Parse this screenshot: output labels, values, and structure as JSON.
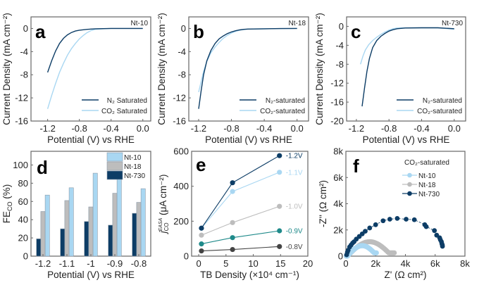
{
  "colors": {
    "dark_blue": "#0d3d66",
    "light_blue": "#a9d7f2",
    "gray": "#bdbdbd",
    "teal": "#1f8a8a",
    "dark_gray": "#444444",
    "frame": "#666666"
  },
  "chart_data": [
    {
      "id": "a",
      "type": "line",
      "panel_label": "a",
      "annotation": "Nt-10",
      "xlabel": "Potential (V) vs RHE",
      "ylabel": "Current Density (mA cm⁻²)",
      "xlim": [
        -1.41,
        0.1
      ],
      "ylim": [
        -16,
        2
      ],
      "xticks": [
        -1.2,
        -0.8,
        -0.4,
        0.0
      ],
      "xtick_labels": [
        "-1.2",
        "-0.8",
        "-0.4",
        "0.0"
      ],
      "yticks": [
        0,
        -4,
        -8,
        -12,
        -16
      ],
      "ytick_labels": [
        "0",
        "-4",
        "-8",
        "-12",
        "-16"
      ],
      "legend_position": "bottom-right",
      "series": [
        {
          "name": "N₂ Saturated",
          "color_key": "dark_blue",
          "x": [
            -1.2,
            -1.15,
            -1.1,
            -1.05,
            -1.0,
            -0.95,
            -0.9,
            -0.85,
            -0.8,
            -0.7,
            -0.6,
            -0.4,
            -0.2,
            0.0
          ],
          "y": [
            -7.6,
            -5.6,
            -3.9,
            -2.6,
            -1.7,
            -1.1,
            -0.7,
            -0.45,
            -0.3,
            -0.15,
            -0.05,
            0,
            0,
            0
          ]
        },
        {
          "name": "CO₂ Saturated",
          "color_key": "light_blue",
          "x": [
            -1.2,
            -1.15,
            -1.1,
            -1.05,
            -1.0,
            -0.95,
            -0.9,
            -0.85,
            -0.8,
            -0.75,
            -0.7,
            -0.65,
            -0.6,
            -0.5,
            -0.4,
            -0.2,
            0.0
          ],
          "y": [
            -13.9,
            -11.6,
            -9.5,
            -7.6,
            -6.0,
            -4.6,
            -3.5,
            -2.6,
            -1.8,
            -1.2,
            -0.7,
            -0.35,
            -0.15,
            -0.05,
            0,
            0,
            0
          ]
        }
      ]
    },
    {
      "id": "b",
      "type": "line",
      "panel_label": "b",
      "annotation": "Nt-18",
      "xlabel": "Potential (V) vs RHE",
      "ylabel": "Current Density (mA cm⁻²)",
      "xlim": [
        -1.32,
        0.14
      ],
      "ylim": [
        -16,
        2
      ],
      "xticks": [
        -1.2,
        -0.8,
        -0.4,
        0.0
      ],
      "xtick_labels": [
        "-1.2",
        "-0.8",
        "-0.4",
        "0.0"
      ],
      "yticks": [
        0,
        -4,
        -8,
        -12,
        -16
      ],
      "ytick_labels": [
        "0",
        "-4",
        "-8",
        "-12",
        "-16"
      ],
      "legend_position": "bottom-right",
      "series": [
        {
          "name": "N₂-saturated",
          "color_key": "dark_blue",
          "x": [
            -1.2,
            -1.17,
            -1.14,
            -1.1,
            -1.05,
            -1.0,
            -0.95,
            -0.9,
            -0.85,
            -0.8,
            -0.75,
            -0.7,
            -0.65,
            -0.6,
            -0.4,
            -0.2,
            0.0
          ],
          "y": [
            -13.9,
            -10.8,
            -8.0,
            -5.6,
            -3.8,
            -2.6,
            -1.8,
            -1.3,
            -0.9,
            -0.6,
            -0.4,
            -0.25,
            -0.15,
            -0.1,
            -0.05,
            -0.02,
            0
          ]
        },
        {
          "name": "CO₂-saturated",
          "color_key": "light_blue",
          "x": [
            -1.2,
            -1.17,
            -1.14,
            -1.1,
            -1.05,
            -1.0,
            -0.95,
            -0.9,
            -0.85,
            -0.8,
            -0.75,
            -0.7,
            -0.65,
            -0.6,
            -0.4,
            -0.2,
            0.0
          ],
          "y": [
            -11.0,
            -9.2,
            -7.4,
            -5.7,
            -4.2,
            -3.2,
            -2.4,
            -1.7,
            -1.2,
            -0.8,
            -0.5,
            -0.3,
            -0.2,
            -0.1,
            -0.05,
            -0.02,
            0
          ]
        }
      ]
    },
    {
      "id": "c",
      "type": "line",
      "panel_label": "c",
      "annotation": "Nt-730",
      "xlabel": "Potential (V) vs RHE",
      "ylabel": "Current Density (mA cm⁻²)",
      "xlim": [
        -1.32,
        0.14
      ],
      "ylim": [
        -20,
        2
      ],
      "xticks": [
        -1.2,
        -0.8,
        -0.4,
        0.0
      ],
      "xtick_labels": [
        "-1.2",
        "-0.8",
        "-0.4",
        "0.0"
      ],
      "yticks": [
        0,
        -4,
        -8,
        -12,
        -16,
        -20
      ],
      "ytick_labels": [
        "0",
        "-4",
        "-8",
        "-12",
        "-16",
        "-20"
      ],
      "legend_position": "bottom-right",
      "series": [
        {
          "name": "N₂-saturated",
          "color_key": "dark_blue",
          "x": [
            -1.13,
            -1.1,
            -1.07,
            -1.04,
            -1.0,
            -0.95,
            -0.9,
            -0.85,
            -0.8,
            -0.75,
            -0.7,
            -0.6,
            -0.4,
            -0.2,
            0.0
          ],
          "y": [
            -16.9,
            -13.0,
            -9.5,
            -6.8,
            -4.5,
            -3.0,
            -2.1,
            -1.5,
            -1.0,
            -0.7,
            -0.5,
            -0.35,
            -0.3,
            -0.3,
            -0.5
          ]
        },
        {
          "name": "CO₂-saturated",
          "color_key": "light_blue",
          "x": [
            -1.15,
            -1.12,
            -1.09,
            -1.05,
            -1.0,
            -0.95,
            -0.9,
            -0.85,
            -0.8,
            -0.75,
            -0.7,
            -0.6,
            -0.4,
            -0.2,
            0.0
          ],
          "y": [
            -8.0,
            -6.3,
            -5.0,
            -3.9,
            -3.0,
            -2.3,
            -1.7,
            -1.2,
            -0.8,
            -0.5,
            -0.35,
            -0.3,
            -0.3,
            -0.3,
            -0.6
          ]
        }
      ]
    },
    {
      "id": "d",
      "type": "bar",
      "panel_label": "d",
      "xlabel": "Potential (V) vs RHE",
      "ylabel": "FE_CO (%)",
      "ylabel_main": "FE",
      "ylabel_sub": "CO",
      "ylabel_tail": " (%)",
      "ylim": [
        0,
        115
      ],
      "yticks": [
        0,
        20,
        40,
        60,
        80,
        100
      ],
      "ytick_labels": [
        "0",
        "20",
        "40",
        "60",
        "80",
        "100"
      ],
      "categories": [
        "-1.2",
        "-1.1",
        "-1",
        "-0.9",
        "-0.8"
      ],
      "legend_position": "top-right",
      "series": [
        {
          "name": "Nt-730",
          "color_key": "dark_blue",
          "values": [
            19,
            30,
            38,
            34,
            47
          ]
        },
        {
          "name": "Nt-18",
          "color_key": "gray",
          "values": [
            49,
            61,
            54,
            69,
            59
          ]
        },
        {
          "name": "Nt-10",
          "color_key": "light_blue",
          "values": [
            67,
            75,
            91,
            87,
            74
          ]
        }
      ],
      "legend_order": [
        "Nt-10",
        "Nt-18",
        "Nt-730"
      ]
    },
    {
      "id": "e",
      "type": "line",
      "panel_label": "e",
      "xlabel": "TB Density (×10⁴ cm⁻¹)",
      "ylabel": "j_CO^EASA (μA cm⁻²)",
      "ylabel_main": "j",
      "ylabel_sub": "CO",
      "ylabel_sup": "EASA",
      "ylabel_tail": " (μA cm⁻²)",
      "xlim": [
        -1.3,
        20
      ],
      "ylim": [
        0,
        600
      ],
      "xticks": [
        0,
        5,
        10,
        15,
        20
      ],
      "xtick_labels": [
        "0",
        "5",
        "10",
        "15",
        "20"
      ],
      "yticks": [
        0,
        200,
        400,
        600
      ],
      "ytick_labels": [
        "0",
        "200",
        "400",
        "600"
      ],
      "series": [
        {
          "name": "-1.2V",
          "color_key": "dark_blue",
          "x": [
            0.5,
            6.2,
            14.8
          ],
          "y": [
            160,
            420,
            575
          ]
        },
        {
          "name": "-1.1V",
          "color_key": "light_blue",
          "x": [
            0.5,
            6.2,
            14.8
          ],
          "y": [
            160,
            370,
            480
          ]
        },
        {
          "name": "-1.0V",
          "color_key": "gray",
          "x": [
            0.5,
            6.2,
            14.8
          ],
          "y": [
            120,
            192,
            285
          ]
        },
        {
          "name": "-0.9V",
          "color_key": "teal",
          "x": [
            0.5,
            6.2,
            14.8
          ],
          "y": [
            70,
            106,
            145
          ]
        },
        {
          "name": "-0.8V",
          "color_key": "dark_gray",
          "x": [
            0.5,
            6.2,
            14.8
          ],
          "y": [
            30,
            38,
            55
          ]
        }
      ]
    },
    {
      "id": "f",
      "type": "scatter",
      "panel_label": "f",
      "xlabel": "Z' (Ω cm²)",
      "ylabel": "-Z'' (Ω cm²)",
      "xlim": [
        0,
        8000
      ],
      "ylim": [
        0,
        8000
      ],
      "xticks": [
        0,
        2000,
        4000,
        6000,
        8000
      ],
      "xtick_labels": [
        "0",
        "2k",
        "4k",
        "6k",
        "8k"
      ],
      "yticks": [
        0,
        2000,
        4000,
        6000,
        8000
      ],
      "ytick_labels": [
        "0",
        "2k",
        "4k",
        "6k",
        "8k"
      ],
      "legend_title": "CO₂-saturated",
      "legend_position": "top-right",
      "series": [
        {
          "name": "Nt-10",
          "color_key": "light_blue",
          "arc": {
            "center_x": 1100,
            "radius": 1000,
            "x_end": 2050,
            "y_end": 250,
            "peak_y": 800
          }
        },
        {
          "name": "Nt-18",
          "color_key": "gray",
          "arc": {
            "center_x": 1600,
            "radius": 1500,
            "x_end": 3250,
            "y_end": 250,
            "peak_y": 1100
          }
        },
        {
          "name": "Nt-730",
          "color_key": "dark_blue",
          "x": [
            50,
            100,
            150,
            250,
            350,
            450,
            550,
            700,
            900,
            1100,
            1300,
            1600,
            2000,
            2500,
            2950,
            3450,
            4050,
            4600,
            5300,
            5400,
            5950,
            6100,
            6300,
            6350,
            6420,
            6450,
            6480,
            6490
          ],
          "y": [
            100,
            300,
            450,
            700,
            850,
            1000,
            1100,
            1300,
            1500,
            1700,
            1900,
            2150,
            2400,
            2700,
            2820,
            2880,
            2820,
            2780,
            2400,
            2250,
            1950,
            1600,
            1400,
            1250,
            1100,
            950,
            850,
            750
          ]
        }
      ]
    }
  ]
}
